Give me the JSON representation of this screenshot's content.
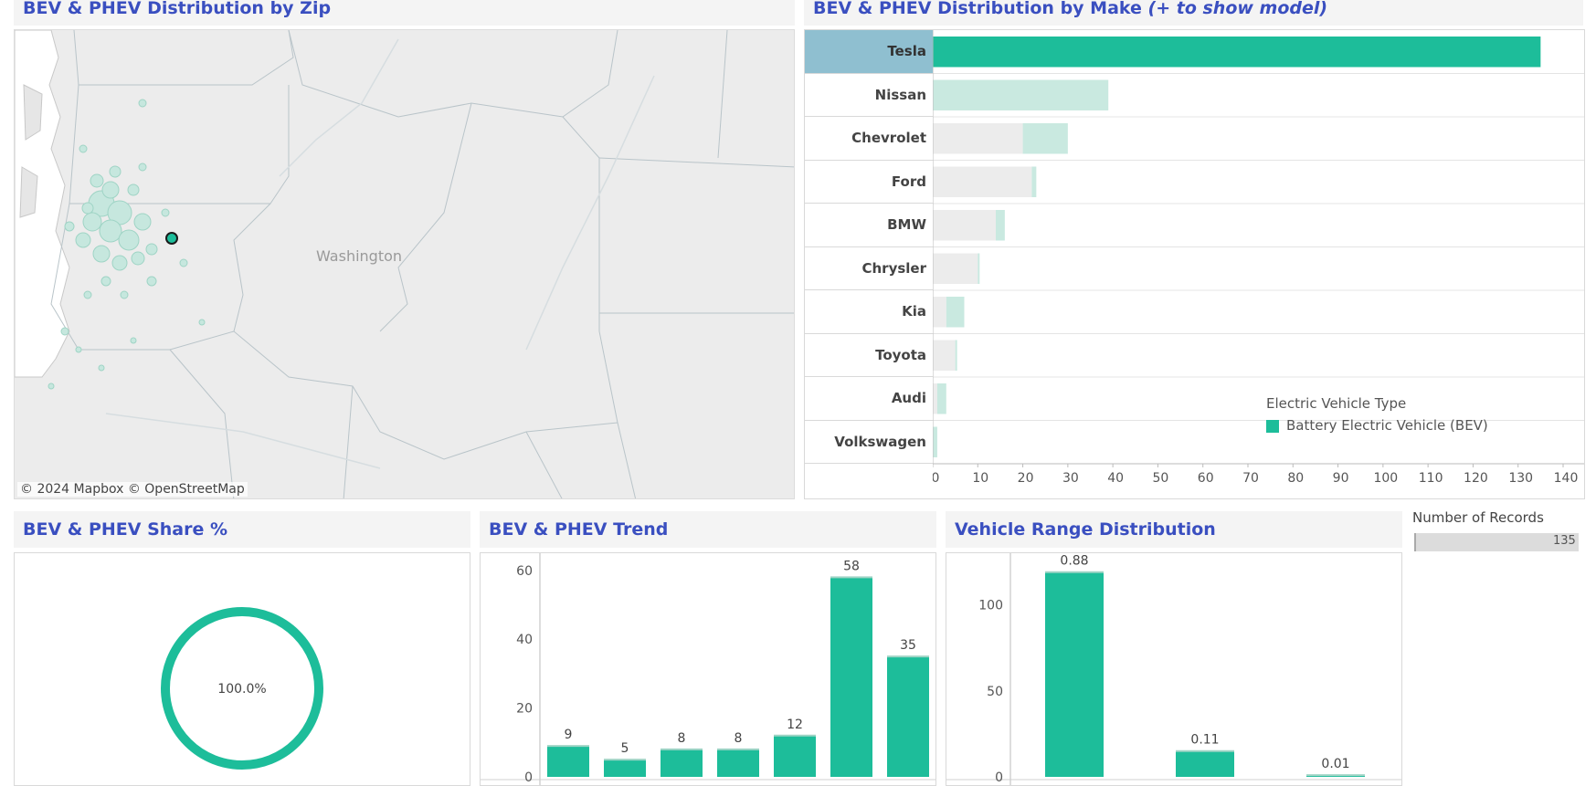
{
  "colors": {
    "accent": "#1dbd9a",
    "accent_light": "#c9e9e0",
    "title": "#3a4fc0",
    "selected": "#8fbfd0"
  },
  "map_panel": {
    "title": "BEV & PHEV Distribution by Zip",
    "state_label": "Washington",
    "attribution": "© 2024 Mapbox  © OpenStreetMap"
  },
  "make_panel": {
    "title": "BEV & PHEV Distribution by Make",
    "title_note": "(+ to show model)",
    "legend_title": "Electric Vehicle Type",
    "legend_item": "Battery Electric Vehicle (BEV)"
  },
  "share_panel": {
    "title": "BEV & PHEV Share %",
    "center_value": "100.0%",
    "share": 1.0
  },
  "trend_panel": {
    "title": "BEV & PHEV Trend"
  },
  "range_panel": {
    "title": "Vehicle Range Distribution"
  },
  "records": {
    "label": "Number of Records",
    "value": "135",
    "max": 135
  },
  "chart_data": [
    {
      "type": "bar",
      "orientation": "horizontal",
      "title": "BEV & PHEV Distribution by Make (+ to show model)",
      "categories": [
        "Tesla",
        "Nissan",
        "Chevrolet",
        "Ford",
        "BMW",
        "Chrysler",
        "Kia",
        "Toyota",
        "Audi",
        "Volkswagen"
      ],
      "series": [
        {
          "name": "Battery Electric Vehicle (BEV)",
          "values": [
            135,
            39,
            30,
            23,
            16,
            10,
            7,
            5,
            3,
            1
          ]
        }
      ],
      "background_values": [
        0,
        0,
        20,
        22,
        14,
        10,
        3,
        5,
        1,
        0
      ],
      "selected": "Tesla",
      "xticks": [
        0,
        10,
        20,
        30,
        40,
        50,
        60,
        70,
        80,
        90,
        100,
        110,
        120,
        130,
        140
      ],
      "xlim": [
        0,
        140
      ],
      "legend": "bottom-right"
    },
    {
      "type": "pie",
      "title": "BEV & PHEV Share %",
      "categories": [
        "Battery Electric Vehicle (BEV)"
      ],
      "values": [
        100.0
      ]
    },
    {
      "type": "bar",
      "title": "BEV & PHEV Trend",
      "values": [
        9,
        5,
        8,
        8,
        12,
        58,
        35
      ],
      "labels": [
        "9",
        "5",
        "8",
        "8",
        "12",
        "58",
        "35"
      ],
      "yticks": [
        0,
        20,
        40,
        60
      ],
      "ylim": [
        0,
        65
      ]
    },
    {
      "type": "bar",
      "title": "Vehicle Range Distribution",
      "values": [
        119,
        15,
        1
      ],
      "labels": [
        "0.88",
        "0.11",
        "0.01"
      ],
      "yticks": [
        0,
        50,
        100
      ],
      "ylim": [
        0,
        130
      ]
    }
  ]
}
